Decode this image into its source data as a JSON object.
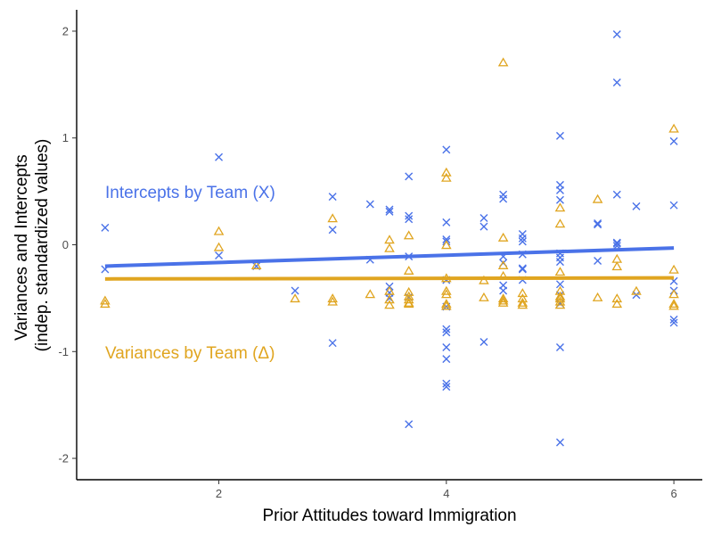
{
  "chart_data": {
    "type": "scatter",
    "xlabel": "Prior Attitudes toward Immigration",
    "ylabel_lines": [
      "Variances and Intercepts",
      "(indep. standardized values)"
    ],
    "xlim": [
      0.75,
      6.25
    ],
    "ylim": [
      -2.2,
      2.2
    ],
    "xticks": [
      2,
      4,
      6
    ],
    "yticks": [
      -2,
      -1,
      0,
      1,
      2
    ],
    "grid": false,
    "annotations": [
      {
        "text": "Intercepts by Team (X)",
        "series": "intercepts"
      },
      {
        "text": "Variances by Team (Δ)",
        "series": "variances"
      }
    ],
    "series": [
      {
        "key": "intercepts",
        "marker": "x",
        "color": "#4a72e8",
        "fit": {
          "x": [
            1,
            6
          ],
          "y": [
            -0.2,
            -0.03
          ]
        },
        "points": [
          [
            1,
            0.16
          ],
          [
            1,
            -0.23
          ],
          [
            2,
            0.82
          ],
          [
            2,
            -0.1
          ],
          [
            2.33,
            -0.2
          ],
          [
            2.67,
            -0.43
          ],
          [
            3,
            0.45
          ],
          [
            3,
            0.14
          ],
          [
            3,
            -0.92
          ],
          [
            3.33,
            0.38
          ],
          [
            3.33,
            -0.14
          ],
          [
            3.5,
            0.33
          ],
          [
            3.5,
            0.31
          ],
          [
            3.5,
            -0.39
          ],
          [
            3.5,
            -0.45
          ],
          [
            3.5,
            -0.5
          ],
          [
            3.67,
            0.64
          ],
          [
            3.67,
            0.27
          ],
          [
            3.67,
            0.24
          ],
          [
            3.67,
            -0.11
          ],
          [
            3.67,
            -0.49
          ],
          [
            3.67,
            -1.68
          ],
          [
            4,
            0.89
          ],
          [
            4,
            0.21
          ],
          [
            4,
            0.05
          ],
          [
            4,
            0.03
          ],
          [
            4,
            -0.33
          ],
          [
            4,
            -0.58
          ],
          [
            4,
            -0.79
          ],
          [
            4,
            -0.82
          ],
          [
            4,
            -0.96
          ],
          [
            4,
            -1.07
          ],
          [
            4,
            -1.3
          ],
          [
            4,
            -1.33
          ],
          [
            4.33,
            0.25
          ],
          [
            4.33,
            0.17
          ],
          [
            4.33,
            -0.91
          ],
          [
            4.5,
            0.47
          ],
          [
            4.5,
            0.43
          ],
          [
            4.5,
            -0.11
          ],
          [
            4.5,
            -0.17
          ],
          [
            4.5,
            -0.38
          ],
          [
            4.5,
            -0.43
          ],
          [
            4.67,
            0.1
          ],
          [
            4.67,
            0.06
          ],
          [
            4.67,
            0.03
          ],
          [
            4.67,
            -0.09
          ],
          [
            4.67,
            -0.22
          ],
          [
            4.67,
            -0.23
          ],
          [
            4.67,
            -0.33
          ],
          [
            5,
            1.02
          ],
          [
            5,
            0.56
          ],
          [
            5,
            0.51
          ],
          [
            5,
            0.42
          ],
          [
            5,
            -0.08
          ],
          [
            5,
            -0.12
          ],
          [
            5,
            -0.16
          ],
          [
            5,
            -0.37
          ],
          [
            5,
            -0.47
          ],
          [
            5,
            -0.55
          ],
          [
            5,
            -0.96
          ],
          [
            5,
            -1.85
          ],
          [
            5.33,
            0.2
          ],
          [
            5.33,
            0.19
          ],
          [
            5.33,
            -0.15
          ],
          [
            5.5,
            1.97
          ],
          [
            5.5,
            1.52
          ],
          [
            5.5,
            0.47
          ],
          [
            5.5,
            0.02
          ],
          [
            5.5,
            0.01
          ],
          [
            5.5,
            -0.01
          ],
          [
            5.67,
            0.36
          ],
          [
            5.67,
            -0.47
          ],
          [
            6,
            0.97
          ],
          [
            6,
            0.37
          ],
          [
            6,
            -0.34
          ],
          [
            6,
            -0.43
          ],
          [
            6,
            -0.7
          ],
          [
            6,
            -0.73
          ]
        ]
      },
      {
        "key": "variances",
        "marker": "triangle",
        "color": "#e0a520",
        "fit": {
          "x": [
            1,
            6
          ],
          "y": [
            -0.32,
            -0.31
          ]
        },
        "points": [
          [
            1,
            -0.53
          ],
          [
            1,
            -0.56
          ],
          [
            2,
            0.12
          ],
          [
            2,
            -0.03
          ],
          [
            2.33,
            -0.2
          ],
          [
            2.67,
            -0.51
          ],
          [
            3,
            0.24
          ],
          [
            3,
            -0.51
          ],
          [
            3,
            -0.54
          ],
          [
            3.33,
            -0.47
          ],
          [
            3.5,
            0.04
          ],
          [
            3.5,
            -0.04
          ],
          [
            3.5,
            -0.44
          ],
          [
            3.5,
            -0.52
          ],
          [
            3.5,
            -0.57
          ],
          [
            3.67,
            0.08
          ],
          [
            3.67,
            -0.25
          ],
          [
            3.67,
            -0.45
          ],
          [
            3.67,
            -0.49
          ],
          [
            3.67,
            -0.52
          ],
          [
            3.67,
            -0.55
          ],
          [
            3.67,
            -0.56
          ],
          [
            4,
            0.67
          ],
          [
            4,
            0.62
          ],
          [
            4,
            -0.01
          ],
          [
            4,
            -0.32
          ],
          [
            4,
            -0.44
          ],
          [
            4,
            -0.47
          ],
          [
            4,
            -0.56
          ],
          [
            4,
            -0.58
          ],
          [
            4.33,
            -0.34
          ],
          [
            4.33,
            -0.5
          ],
          [
            4.5,
            1.7
          ],
          [
            4.5,
            0.06
          ],
          [
            4.5,
            -0.2
          ],
          [
            4.5,
            -0.3
          ],
          [
            4.5,
            -0.51
          ],
          [
            4.5,
            -0.53
          ],
          [
            4.5,
            -0.55
          ],
          [
            4.67,
            -0.46
          ],
          [
            4.67,
            -0.51
          ],
          [
            4.67,
            -0.55
          ],
          [
            4.67,
            -0.57
          ],
          [
            5,
            0.34
          ],
          [
            5,
            0.19
          ],
          [
            5,
            -0.26
          ],
          [
            5,
            -0.44
          ],
          [
            5,
            -0.49
          ],
          [
            5,
            -0.51
          ],
          [
            5,
            -0.54
          ],
          [
            5,
            -0.57
          ],
          [
            5.33,
            0.42
          ],
          [
            5.33,
            -0.5
          ],
          [
            5.5,
            -0.14
          ],
          [
            5.5,
            -0.21
          ],
          [
            5.5,
            -0.51
          ],
          [
            5.5,
            -0.56
          ],
          [
            5.67,
            -0.44
          ],
          [
            6,
            1.08
          ],
          [
            6,
            -0.24
          ],
          [
            6,
            -0.47
          ],
          [
            6,
            -0.56
          ],
          [
            6,
            -0.58
          ]
        ]
      }
    ]
  }
}
